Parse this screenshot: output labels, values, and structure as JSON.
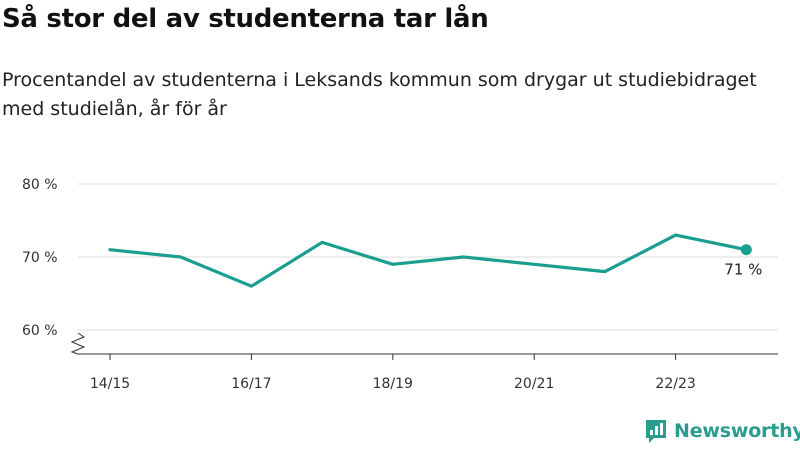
{
  "title": "Så stor del av studenterna tar lån",
  "subtitle": "Procentandel av studenterna i Leksands kommun som drygar ut studiebidraget med studielån, år för år",
  "brand": "Newsworthy",
  "colors": {
    "line": "#1a9e8f",
    "grid": "#dddddd",
    "axis": "#333333",
    "brand": "#2a9d8f"
  },
  "chart_data": {
    "type": "line",
    "x": [
      "14/15",
      "15/16",
      "16/17",
      "17/18",
      "18/19",
      "19/20",
      "20/21",
      "21/22",
      "22/23",
      "23/24"
    ],
    "values": [
      71,
      70,
      66,
      72,
      69,
      70,
      69,
      68,
      73,
      71
    ],
    "x_tick_labels": [
      "14/15",
      "16/17",
      "18/19",
      "20/21",
      "22/23"
    ],
    "y_ticks": [
      60,
      70,
      80
    ],
    "y_tick_labels": [
      "60 %",
      "70 %",
      "80 %"
    ],
    "ylim": [
      57,
      80
    ],
    "grid": true,
    "broken_y_axis": true,
    "last_point_label": "71 %"
  }
}
